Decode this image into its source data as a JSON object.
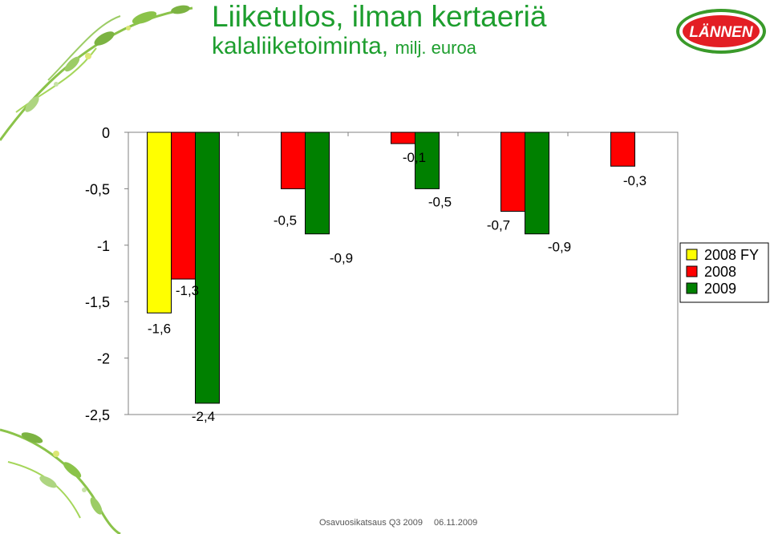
{
  "header": {
    "title_line1": "Liiketulos, ilman kertaeriä",
    "title_line2_main": "kalaliiketoiminta,",
    "title_line2_unit": "milj. euroa",
    "logo_text": "LÄNNEN"
  },
  "footer": {
    "text": "Osavuosikatsaus Q3 2009",
    "date": "06.11.2009"
  },
  "colors": {
    "title": "#1d9e2e",
    "series_2008_fy": "#ffff00",
    "series_2008": "#ff0000",
    "series_2009": "#008000",
    "logo_red": "#e31e24",
    "logo_green": "#3a9a2a"
  },
  "chart_data": {
    "type": "bar",
    "categories": [
      "",
      "",
      "",
      "",
      ""
    ],
    "ylim": [
      -2.5,
      0
    ],
    "yticks": [
      0,
      -0.5,
      -1,
      -1.5,
      -2,
      -2.5
    ],
    "ytick_labels": [
      "0",
      "-0,5",
      "-1",
      "-1,5",
      "-2",
      "-2,5"
    ],
    "legend_position": "right",
    "grid": false,
    "series": [
      {
        "name": "2008 FY",
        "color": "#ffff00",
        "values": [
          -1.6,
          null,
          null,
          null,
          null
        ],
        "labels": [
          "-1,6",
          "",
          "",
          "",
          ""
        ]
      },
      {
        "name": "2008",
        "color": "#ff0000",
        "values": [
          -1.3,
          -0.5,
          -0.1,
          -0.7,
          -0.3
        ],
        "labels": [
          "-1,3",
          "-0,5",
          "-0,1",
          "-0,7",
          "-0,3"
        ]
      },
      {
        "name": "2009",
        "color": "#008000",
        "values": [
          -2.4,
          -0.9,
          -0.5,
          -0.9,
          null
        ],
        "labels": [
          "-2,4",
          "-0,9",
          "-0,5",
          "-0,9",
          ""
        ]
      }
    ]
  }
}
